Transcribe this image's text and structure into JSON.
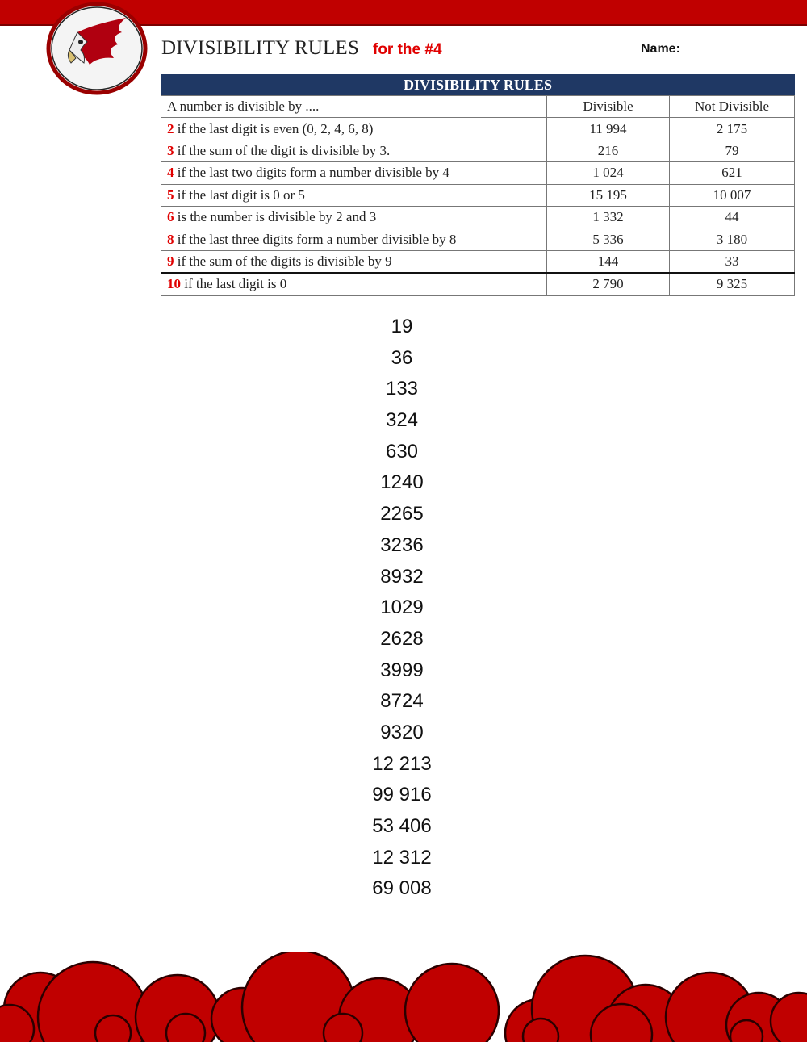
{
  "header": {
    "title": "DIVISIBILITY RULES",
    "subtitle": "for the #4",
    "name_label": "Name:",
    "logo": "hawk-mascot-logo"
  },
  "table": {
    "title": "DIVISIBILITY RULES",
    "columns": [
      "A number is divisible by ....",
      "Divisible",
      "Not Divisible"
    ],
    "rows": [
      {
        "n": "2",
        "rule": " if the last digit is even (0, 2, 4, 6, 8)",
        "divisible": "11 994",
        "not_divisible": "2 175"
      },
      {
        "n": "3",
        "rule": " if the sum of the digit is divisible by 3.",
        "divisible": "216",
        "not_divisible": "79"
      },
      {
        "n": "4",
        "rule": " if the last two digits form a number divisible by 4",
        "divisible": "1 024",
        "not_divisible": "621"
      },
      {
        "n": "5",
        "rule": " if the last digit is 0 or 5",
        "divisible": "15 195",
        "not_divisible": "10 007"
      },
      {
        "n": "6",
        "rule": " is the number is divisible by 2 and 3",
        "divisible": "1 332",
        "not_divisible": "44"
      },
      {
        "n": "8",
        "rule": " if the last three digits form a number divisible by 8",
        "divisible": "5 336",
        "not_divisible": "3 180"
      },
      {
        "n": "9",
        "rule": " if the sum of the digits is divisible by 9",
        "divisible": "144",
        "not_divisible": "33"
      },
      {
        "n": "10",
        "rule": " if the last digit is 0",
        "divisible": "2 790",
        "not_divisible": "9 325"
      }
    ]
  },
  "numbers": [
    "19",
    "36",
    "133",
    "324",
    "630",
    "1240",
    "2265",
    "3236",
    "8932",
    "1029",
    "2628",
    "3999",
    "8724",
    "9320",
    "12 213",
    "99 916",
    "53 406",
    "12 312",
    "69 008"
  ],
  "colors": {
    "accent_red": "#c00000",
    "table_header": "#1f3864",
    "rule_number": "#e00000"
  }
}
